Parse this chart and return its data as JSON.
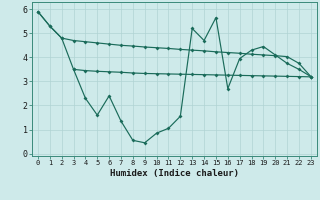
{
  "xlabel": "Humidex (Indice chaleur)",
  "bg_color": "#ceeaea",
  "grid_color": "#b0d4d4",
  "line_color": "#1a6b5a",
  "xlim": [
    -0.5,
    23.5
  ],
  "ylim": [
    -0.1,
    6.3
  ],
  "xticks": [
    0,
    1,
    2,
    3,
    4,
    5,
    6,
    7,
    8,
    9,
    10,
    11,
    12,
    13,
    14,
    15,
    16,
    17,
    18,
    19,
    20,
    21,
    22,
    23
  ],
  "yticks": [
    0,
    1,
    2,
    3,
    4,
    5,
    6
  ],
  "line1_x": [
    0,
    1,
    2,
    3,
    4,
    5,
    6,
    7,
    8,
    9,
    10,
    11,
    12,
    13,
    14,
    15,
    16,
    17,
    18,
    19,
    20,
    21,
    22,
    23
  ],
  "line1_y": [
    5.9,
    5.3,
    4.8,
    4.7,
    4.65,
    4.6,
    4.55,
    4.5,
    4.47,
    4.43,
    4.4,
    4.37,
    4.33,
    4.3,
    4.27,
    4.23,
    4.2,
    4.17,
    4.13,
    4.1,
    4.07,
    4.03,
    3.75,
    3.2
  ],
  "line2_x": [
    3,
    4,
    5,
    6,
    7,
    8,
    9,
    10,
    11,
    12,
    13,
    14,
    15,
    16,
    17,
    18,
    19,
    20,
    21,
    22,
    23
  ],
  "line2_y": [
    3.5,
    3.45,
    3.42,
    3.4,
    3.38,
    3.35,
    3.33,
    3.32,
    3.31,
    3.3,
    3.29,
    3.28,
    3.27,
    3.26,
    3.25,
    3.24,
    3.23,
    3.22,
    3.21,
    3.2,
    3.19
  ],
  "line3_x": [
    0,
    1,
    2,
    3,
    4,
    5,
    6,
    7,
    8,
    9,
    10,
    11,
    12,
    13,
    14,
    15,
    16,
    17,
    18,
    19,
    20,
    21,
    22,
    23
  ],
  "line3_y": [
    5.9,
    5.3,
    4.8,
    3.5,
    2.3,
    1.6,
    2.4,
    1.35,
    0.55,
    0.45,
    0.85,
    1.05,
    1.55,
    5.2,
    4.7,
    5.65,
    2.7,
    3.95,
    4.3,
    4.45,
    4.1,
    3.75,
    3.5,
    3.2
  ]
}
